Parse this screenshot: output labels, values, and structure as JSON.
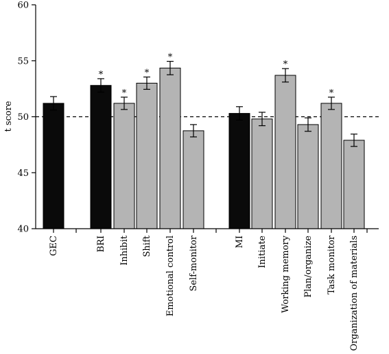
{
  "chart_data": {
    "type": "bar",
    "title": "",
    "xlabel": "",
    "ylabel": "t score",
    "ylim": [
      40,
      60
    ],
    "yticks": [
      40,
      45,
      50,
      55,
      60
    ],
    "reference_line": 50,
    "grid": false,
    "legend": "none",
    "colors": {
      "black": "#0a0a0a",
      "gray": "#b4b4b4",
      "edge": "#000000"
    },
    "bars": [
      {
        "label": "GEC",
        "value": 51.2,
        "error": 0.6,
        "color": "black",
        "significant": false
      },
      {
        "label": "BRI",
        "value": 52.8,
        "error": 0.6,
        "color": "black",
        "significant": true
      },
      {
        "label": "Inhibit",
        "value": 51.2,
        "error": 0.55,
        "color": "gray",
        "significant": true
      },
      {
        "label": "Shift",
        "value": 53.0,
        "error": 0.55,
        "color": "gray",
        "significant": true
      },
      {
        "label": "Emotional control",
        "value": 54.35,
        "error": 0.6,
        "color": "gray",
        "significant": true
      },
      {
        "label": "Self-monitor",
        "value": 48.75,
        "error": 0.55,
        "color": "gray",
        "significant": false
      },
      {
        "label": "MI",
        "value": 50.3,
        "error": 0.6,
        "color": "black",
        "significant": false
      },
      {
        "label": "Initiate",
        "value": 49.8,
        "error": 0.6,
        "color": "gray",
        "significant": false
      },
      {
        "label": "Working memory",
        "value": 53.7,
        "error": 0.6,
        "color": "gray",
        "significant": true
      },
      {
        "label": "Plan/organize",
        "value": 49.3,
        "error": 0.6,
        "color": "gray",
        "significant": false
      },
      {
        "label": "Task monitor",
        "value": 51.2,
        "error": 0.55,
        "color": "gray",
        "significant": true
      },
      {
        "label": "Organization of materials",
        "value": 47.9,
        "error": 0.55,
        "color": "gray",
        "significant": false
      }
    ],
    "significance_marker": "*"
  }
}
